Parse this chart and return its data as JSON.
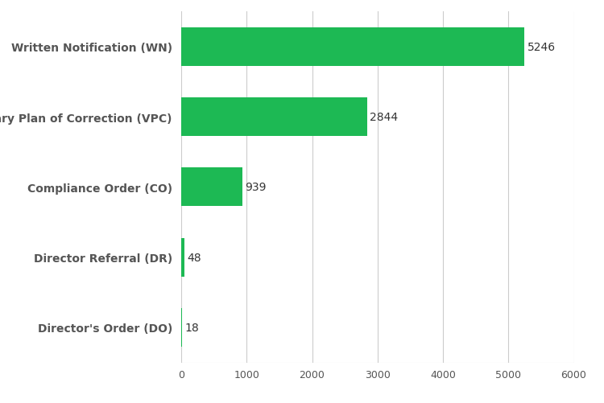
{
  "categories": [
    "Director's Order (DO)",
    "Director Referral (DR)",
    "Compliance Order (CO)",
    "Voluntary Plan of Correction (VPC)",
    "Written Notification (WN)"
  ],
  "values": [
    18,
    48,
    939,
    2844,
    5246
  ],
  "bar_color": "#1db954",
  "label_color": "#555555",
  "value_color": "#333333",
  "background_color": "#ffffff",
  "grid_color": "#cccccc",
  "xlim": [
    0,
    6000
  ],
  "xticks": [
    0,
    1000,
    2000,
    3000,
    4000,
    5000,
    6000
  ],
  "bar_height": 0.55,
  "figsize": [
    7.5,
    5.02
  ],
  "dpi": 100,
  "label_fontsize": 10,
  "value_fontsize": 10,
  "tick_fontsize": 9
}
